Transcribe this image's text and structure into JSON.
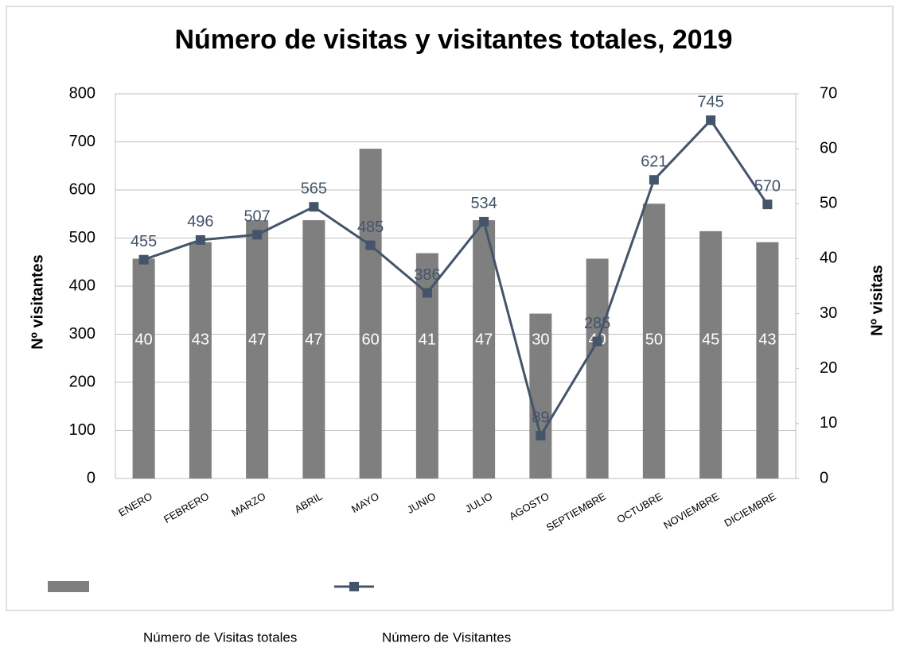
{
  "chart_data": {
    "type": "bar_line",
    "title": "Número de visitas y visitantes totales, 2019",
    "y_label": "Nº visitantes",
    "y2_label": "Nº visitas",
    "categories": [
      "ENERO",
      "FEBRERO",
      "MARZO",
      "ABRIL",
      "MAYO",
      "JUNIO",
      "JULIO",
      "AGOSTO",
      "SEPTIEMBRE",
      "OCTUBRE",
      "NOVIEMBRE",
      "DICIEMBRE"
    ],
    "series": [
      {
        "name": "Número de Visitas totales",
        "type": "bar",
        "axis": "y2",
        "color": "#7f7f7f",
        "values": [
          40,
          43,
          47,
          47,
          60,
          41,
          47,
          30,
          40,
          50,
          45,
          43
        ]
      },
      {
        "name": "Número de Visitantes",
        "type": "line",
        "axis": "y",
        "color": "#44546a",
        "values": [
          455,
          496,
          507,
          565,
          485,
          386,
          534,
          89,
          285,
          621,
          745,
          570
        ]
      }
    ],
    "ylim": [
      0,
      800
    ],
    "yticks": [
      0,
      100,
      200,
      300,
      400,
      500,
      600,
      700,
      800
    ],
    "y2lim": [
      0,
      70
    ],
    "y2ticks": [
      0,
      10,
      20,
      30,
      40,
      50,
      60,
      70
    ],
    "grid": true
  }
}
